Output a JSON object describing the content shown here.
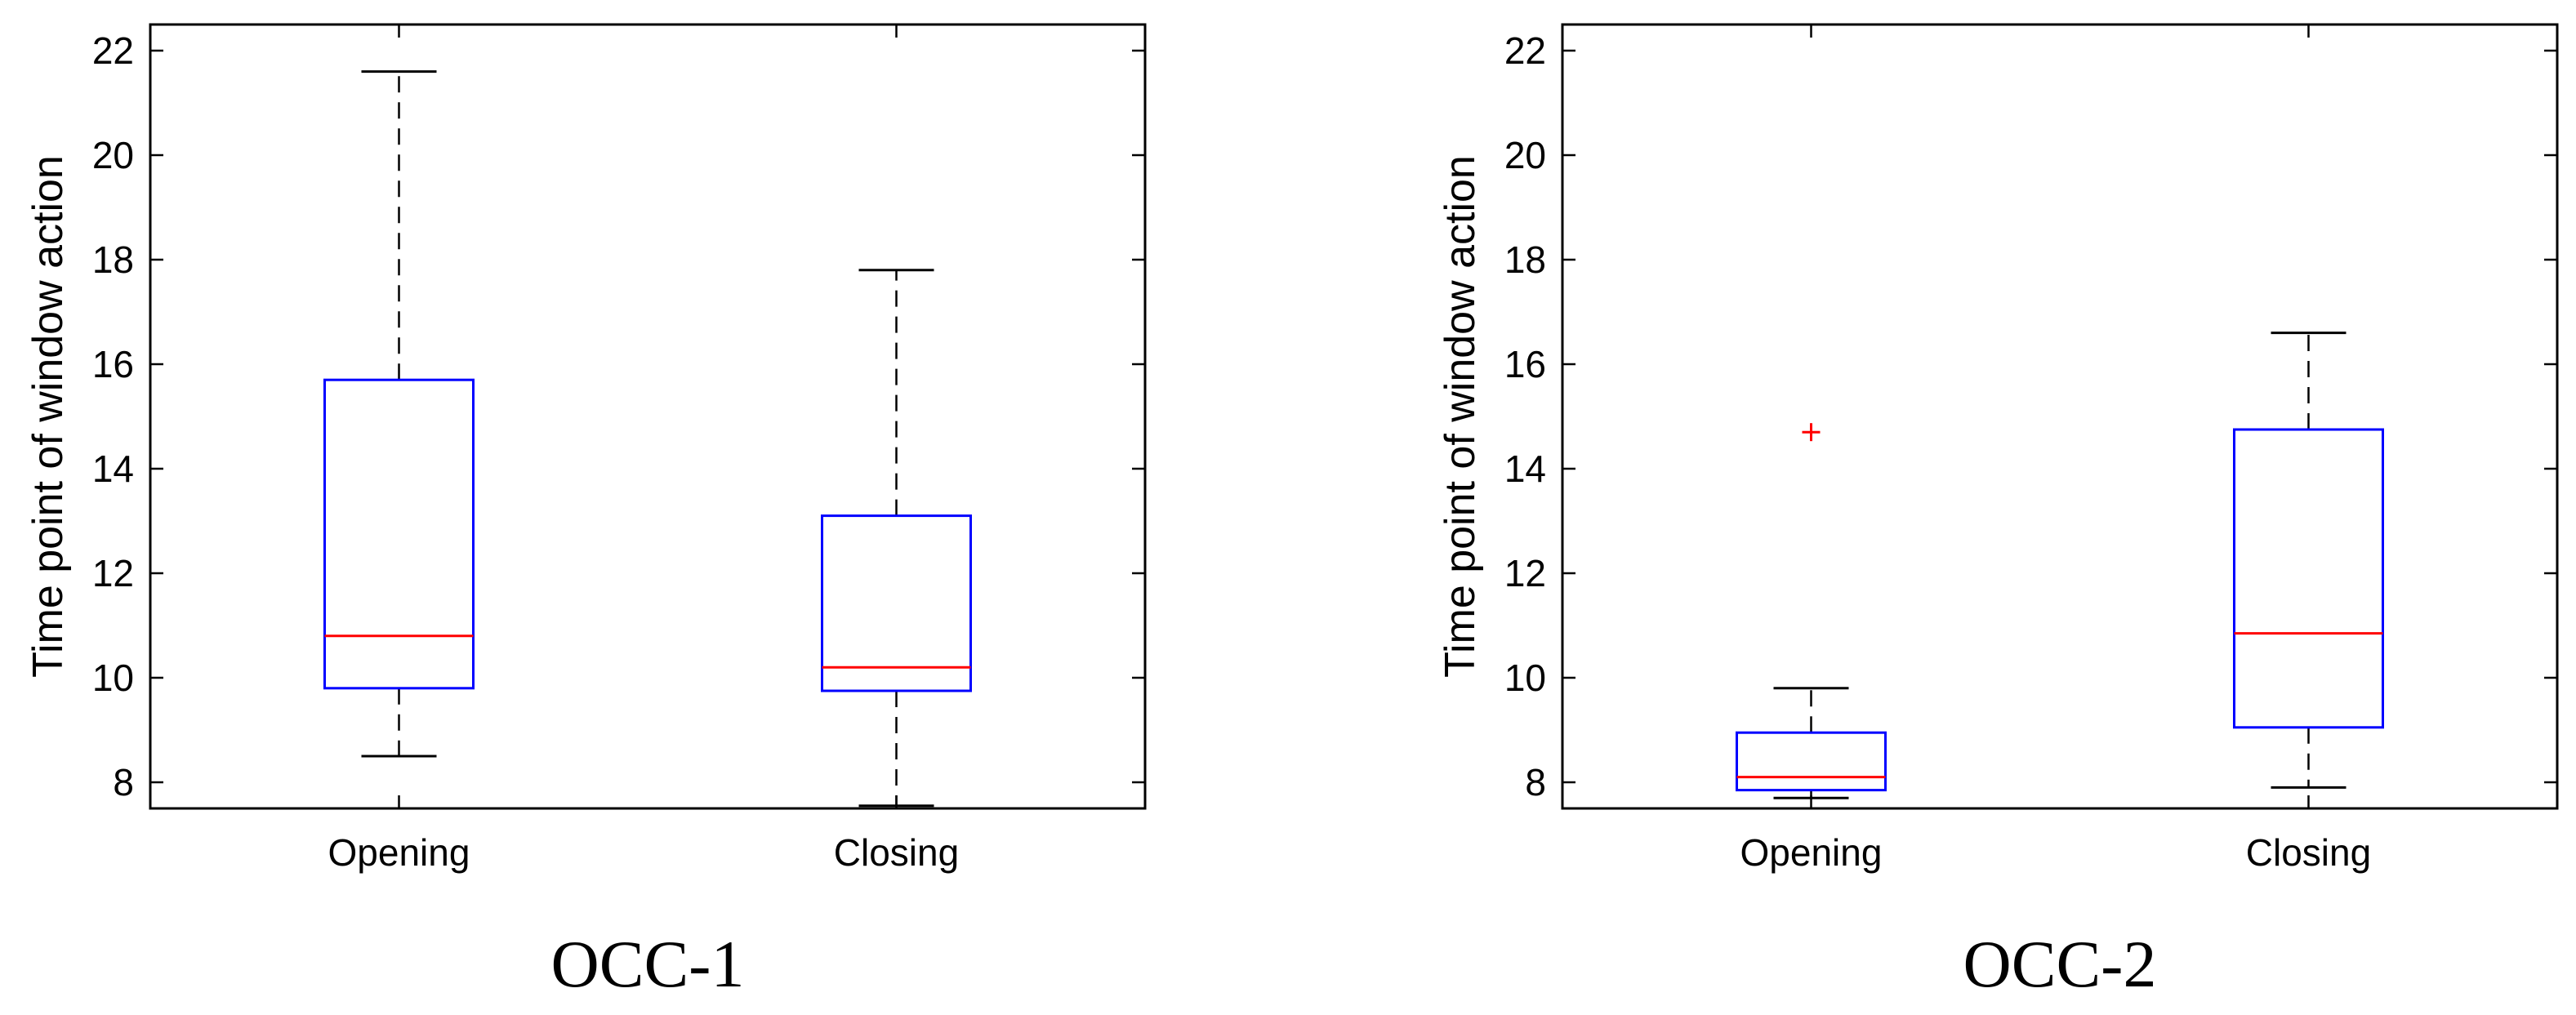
{
  "chart_data": [
    {
      "type": "box",
      "title": "OCC-1",
      "ylabel": "Time point of window action",
      "xlabel": "",
      "ylim": [
        7.5,
        22.5
      ],
      "yticks": [
        8,
        10,
        12,
        14,
        16,
        18,
        20,
        22
      ],
      "categories": [
        "Opening",
        "Closing"
      ],
      "boxes": [
        {
          "category": "Opening",
          "whisker_low": 8.5,
          "q1": 9.8,
          "median": 10.8,
          "q3": 15.7,
          "whisker_high": 21.6,
          "outliers": []
        },
        {
          "category": "Closing",
          "whisker_low": 7.55,
          "q1": 9.75,
          "median": 10.2,
          "q3": 13.1,
          "whisker_high": 17.8,
          "outliers": []
        }
      ],
      "colors": {
        "box": "#0000ff",
        "median": "#ff0000",
        "whisker": "#000000",
        "outlier": "#ff0000"
      },
      "grid": false
    },
    {
      "type": "box",
      "title": "OCC-2",
      "ylabel": "Time point of window action",
      "xlabel": "",
      "ylim": [
        7.5,
        22.5
      ],
      "yticks": [
        8,
        10,
        12,
        14,
        16,
        18,
        20,
        22
      ],
      "categories": [
        "Opening",
        "Closing"
      ],
      "boxes": [
        {
          "category": "Opening",
          "whisker_low": 7.7,
          "q1": 7.85,
          "median": 8.1,
          "q3": 8.95,
          "whisker_high": 9.8,
          "outliers": [
            14.7
          ]
        },
        {
          "category": "Closing",
          "whisker_low": 7.9,
          "q1": 9.05,
          "median": 10.85,
          "q3": 14.75,
          "whisker_high": 16.6,
          "outliers": []
        }
      ],
      "colors": {
        "box": "#0000ff",
        "median": "#ff0000",
        "whisker": "#000000",
        "outlier": "#ff0000"
      },
      "grid": false
    }
  ]
}
